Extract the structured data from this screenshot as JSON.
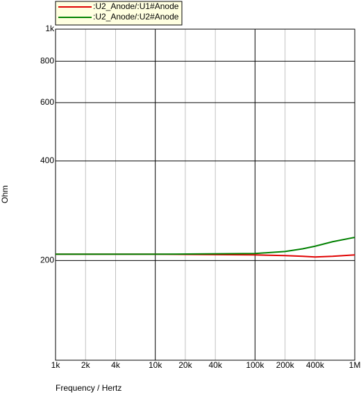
{
  "chart_data": {
    "type": "line",
    "x_label": "Frequency / Hertz",
    "y_label": "Ohm",
    "xscale": "log",
    "yscale": "log",
    "grid": true,
    "xlim": [
      1000,
      1000000
    ],
    "ylim": [
      100,
      1000
    ],
    "xticks": [
      {
        "value": 1000,
        "label": "1k"
      },
      {
        "value": 2000,
        "label": "2k"
      },
      {
        "value": 4000,
        "label": "4k"
      },
      {
        "value": 10000,
        "label": "10k"
      },
      {
        "value": 20000,
        "label": "20k"
      },
      {
        "value": 40000,
        "label": "40k"
      },
      {
        "value": 100000,
        "label": "100k"
      },
      {
        "value": 200000,
        "label": "200k"
      },
      {
        "value": 400000,
        "label": "400k"
      },
      {
        "value": 1000000,
        "label": "1M"
      }
    ],
    "yticks": [
      200,
      400,
      600,
      800,
      {
        "value": 1000,
        "label": "1k"
      }
    ],
    "x": [
      1000,
      10000,
      100000,
      200000,
      300000,
      400000,
      600000,
      1000000
    ],
    "series": [
      {
        "name": ":U2_Anode/:U1#Anode",
        "color": "#e00000",
        "values": [
          209,
          209,
          208,
          207,
          206,
          205,
          206,
          208
        ]
      },
      {
        "name": ":U2_Anode/:U2#Anode",
        "color": "#008000",
        "values": [
          209,
          209,
          210,
          213,
          217,
          221,
          228,
          235
        ]
      }
    ]
  }
}
